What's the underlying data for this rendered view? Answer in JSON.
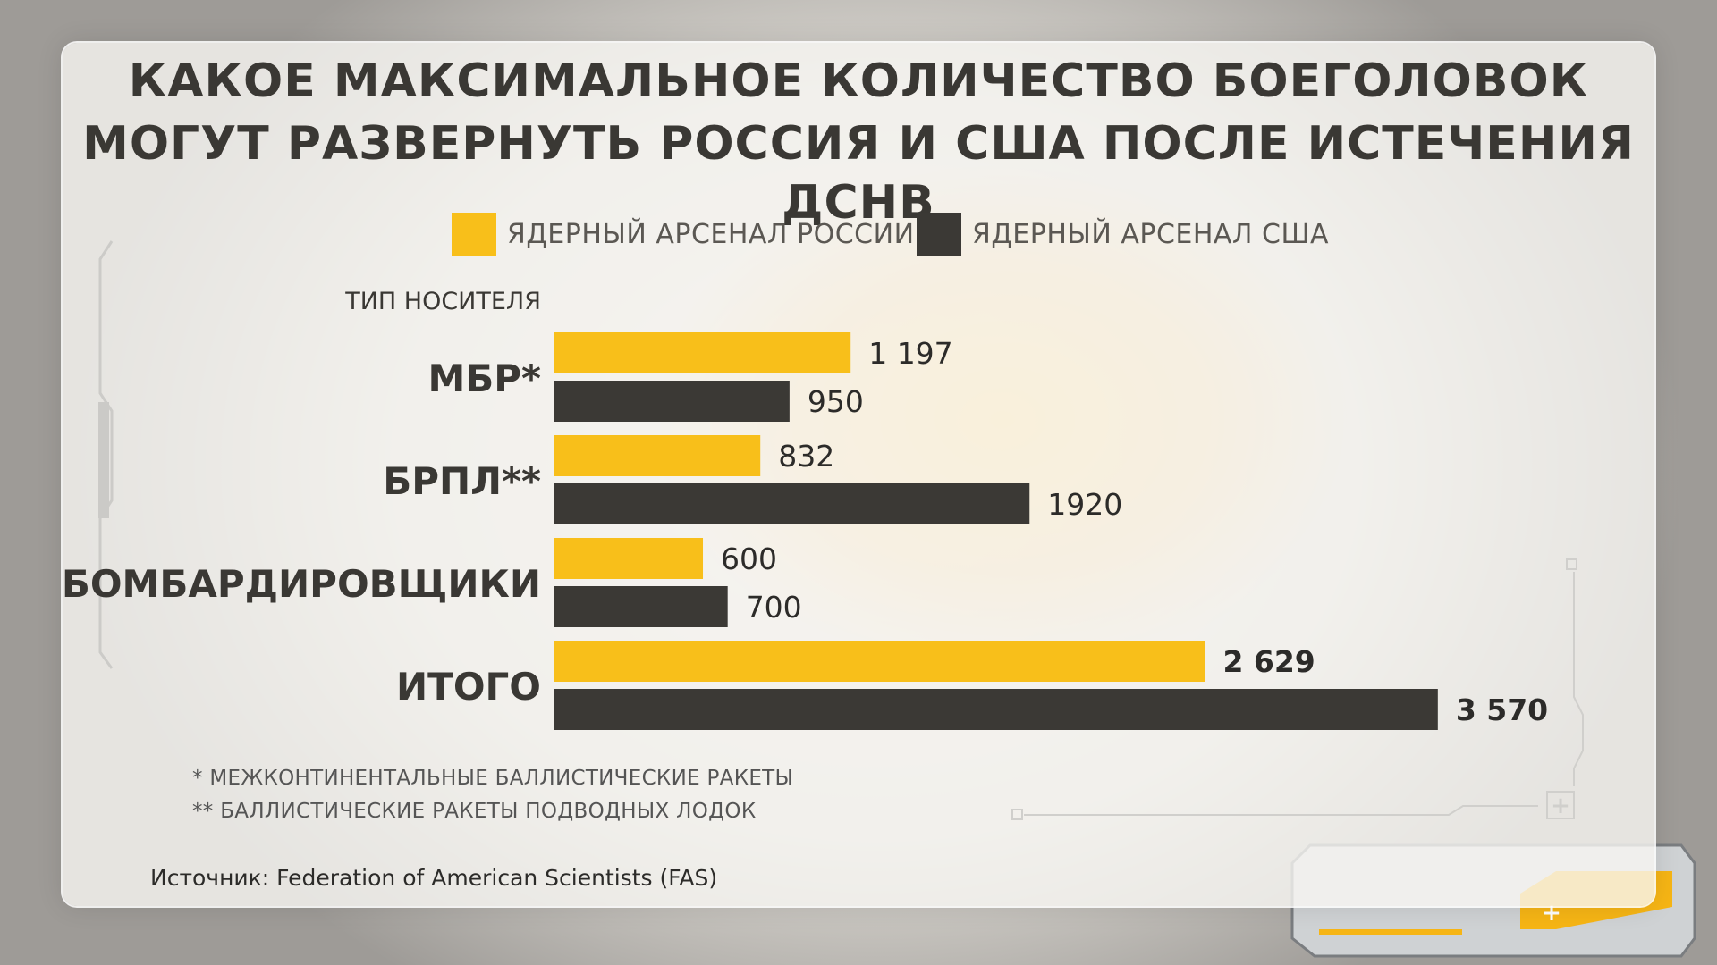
{
  "colors": {
    "russia": "#f8bf1a",
    "usa": "#3b3935",
    "label": "#3a3834"
  },
  "chart_data": {
    "type": "bar",
    "orientation": "horizontal",
    "title": "КАКОЕ МАКСИМАЛЬНОЕ КОЛИЧЕСТВО БОЕГОЛОВОК МОГУТ РАЗВЕРНУТЬ РОССИЯ И США ПОСЛЕ ИСТЕЧЕНИЯ ДСНВ",
    "title_lines": [
      "КАКОЕ МАКСИМАЛЬНОЕ КОЛИЧЕСТВО БОЕГОЛОВОК",
      "МОГУТ РАЗВЕРНУТЬ РОССИЯ И США ПОСЛЕ ИСТЕЧЕНИЯ ДСНВ"
    ],
    "ylabel": "ТИП НОСИТЕЛЯ",
    "categories": [
      "МБР*",
      "БРПЛ**",
      "БОМБАРДИРОВЩИКИ",
      "ИТОГО"
    ],
    "series": [
      {
        "name": "ЯДЕРНЫЙ АРСЕНАЛ РОССИИ",
        "values": [
          1197,
          832,
          600,
          2629
        ],
        "labels": [
          "1 197",
          "832",
          "600",
          "2 629"
        ]
      },
      {
        "name": "ЯДЕРНЫЙ АРСЕНАЛ США",
        "values": [
          950,
          1920,
          700,
          3570
        ],
        "labels": [
          "950",
          "1920",
          "700",
          "3 570"
        ]
      }
    ],
    "bold_category": "ИТОГО",
    "legend_position": "top",
    "grid": false
  },
  "footnotes": [
    "* МЕЖКОНТИНЕНТАЛЬНЫЕ БАЛЛИСТИЧЕСКИЕ РАКЕТЫ",
    "** БАЛЛИСТИЧЕСКИЕ РАКЕТЫ ПОДВОДНЫХ ЛОДОК"
  ],
  "source": "Источник: Federation of American Scientists (FAS)"
}
